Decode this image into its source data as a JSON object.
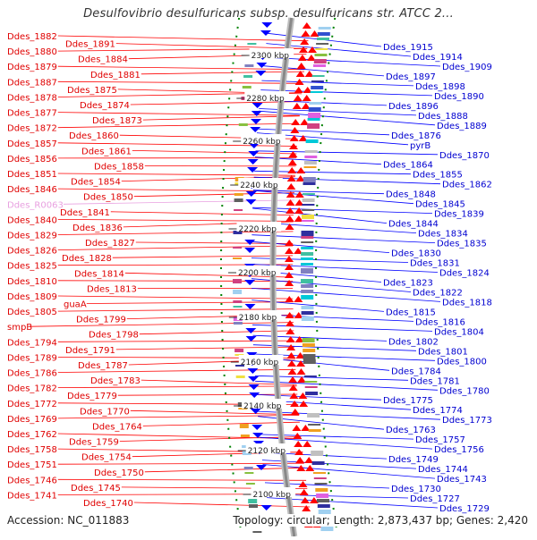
{
  "title": "Desulfovibrio desulfuricans subsp. desulfuricans str. ATCC 2...",
  "footer": {
    "accession": "Accession: NC_011883",
    "summary": "Topology: circular; Length: 2,873,437 bp; Genes: 2,420"
  },
  "colors": {
    "left_label": "#e00000",
    "left_label_alt": "#e8a0e0",
    "right_label": "#0000d0",
    "left_line": "#ff0000",
    "right_line": "#0000ff",
    "backbone": "#888888",
    "ticks": "#008000",
    "forward_gene": "#ff0000",
    "reverse_gene": "#0000ff"
  },
  "kbp_ticks": [
    "2300 kbp",
    "2280 kbp",
    "2260 kbp",
    "2240 kbp",
    "2220 kbp",
    "2200 kbp",
    "2180 kbp",
    "2160 kbp",
    "2140 kbp",
    "2120 kbp",
    "2100 kbp"
  ],
  "left_genes": [
    {
      "label": "Ddes_1882"
    },
    {
      "label": "Ddes_1891"
    },
    {
      "label": "Ddes_1880"
    },
    {
      "label": "Ddes_1884"
    },
    {
      "label": "Ddes_1879"
    },
    {
      "label": "Ddes_1881"
    },
    {
      "label": "Ddes_1887"
    },
    {
      "label": "Ddes_1875"
    },
    {
      "label": "Ddes_1878"
    },
    {
      "label": "Ddes_1874"
    },
    {
      "label": "Ddes_1877"
    },
    {
      "label": "Ddes_1873"
    },
    {
      "label": "Ddes_1872"
    },
    {
      "label": "Ddes_1860"
    },
    {
      "label": "Ddes_1857"
    },
    {
      "label": "Ddes_1861"
    },
    {
      "label": "Ddes_1856"
    },
    {
      "label": "Ddes_1858"
    },
    {
      "label": "Ddes_1851"
    },
    {
      "label": "Ddes_1854"
    },
    {
      "label": "Ddes_1846"
    },
    {
      "label": "Ddes_1850"
    },
    {
      "label": "Ddes_R0063",
      "alt": true
    },
    {
      "label": "Ddes_1841"
    },
    {
      "label": "Ddes_1840"
    },
    {
      "label": "Ddes_1836"
    },
    {
      "label": "Ddes_1829"
    },
    {
      "label": "Ddes_1827"
    },
    {
      "label": "Ddes_1826"
    },
    {
      "label": "Ddes_1828"
    },
    {
      "label": "Ddes_1825"
    },
    {
      "label": "Ddes_1814"
    },
    {
      "label": "Ddes_1810"
    },
    {
      "label": "Ddes_1813"
    },
    {
      "label": "Ddes_1809"
    },
    {
      "label": "guaA"
    },
    {
      "label": "Ddes_1805"
    },
    {
      "label": "Ddes_1799"
    },
    {
      "label": "smpB"
    },
    {
      "label": "Ddes_1798"
    },
    {
      "label": "Ddes_1794"
    },
    {
      "label": "Ddes_1791"
    },
    {
      "label": "Ddes_1789"
    },
    {
      "label": "Ddes_1787"
    },
    {
      "label": "Ddes_1786"
    },
    {
      "label": "Ddes_1783"
    },
    {
      "label": "Ddes_1782"
    },
    {
      "label": "Ddes_1779"
    },
    {
      "label": "Ddes_1772"
    },
    {
      "label": "Ddes_1770"
    },
    {
      "label": "Ddes_1769"
    },
    {
      "label": "Ddes_1764"
    },
    {
      "label": "Ddes_1762"
    },
    {
      "label": "Ddes_1759"
    },
    {
      "label": "Ddes_1758"
    },
    {
      "label": "Ddes_1754"
    },
    {
      "label": "Ddes_1751"
    },
    {
      "label": "Ddes_1750"
    },
    {
      "label": "Ddes_1746"
    },
    {
      "label": "Ddes_1745"
    },
    {
      "label": "Ddes_1741"
    },
    {
      "label": "Ddes_1740"
    }
  ],
  "right_genes": [
    {
      "label": "Ddes_1915"
    },
    {
      "label": "Ddes_1914"
    },
    {
      "label": "Ddes_1909"
    },
    {
      "label": "Ddes_1897"
    },
    {
      "label": "Ddes_1898"
    },
    {
      "label": "Ddes_1890"
    },
    {
      "label": "Ddes_1896"
    },
    {
      "label": "Ddes_1888"
    },
    {
      "label": "Ddes_1889"
    },
    {
      "label": "Ddes_1876"
    },
    {
      "label": "pyrB"
    },
    {
      "label": "Ddes_1870"
    },
    {
      "label": "Ddes_1864"
    },
    {
      "label": "Ddes_1855"
    },
    {
      "label": "Ddes_1862"
    },
    {
      "label": "Ddes_1848"
    },
    {
      "label": "Ddes_1845"
    },
    {
      "label": "Ddes_1839"
    },
    {
      "label": "Ddes_1844"
    },
    {
      "label": "Ddes_1834"
    },
    {
      "label": "Ddes_1835"
    },
    {
      "label": "Ddes_1830"
    },
    {
      "label": "Ddes_1831"
    },
    {
      "label": "Ddes_1824"
    },
    {
      "label": "Ddes_1823"
    },
    {
      "label": "Ddes_1822"
    },
    {
      "label": "Ddes_1818"
    },
    {
      "label": "Ddes_1815"
    },
    {
      "label": "Ddes_1816"
    },
    {
      "label": "Ddes_1804"
    },
    {
      "label": "Ddes_1802"
    },
    {
      "label": "Ddes_1801"
    },
    {
      "label": "Ddes_1800"
    },
    {
      "label": "Ddes_1784"
    },
    {
      "label": "Ddes_1781"
    },
    {
      "label": "Ddes_1780"
    },
    {
      "label": "Ddes_1775"
    },
    {
      "label": "Ddes_1774"
    },
    {
      "label": "Ddes_1773"
    },
    {
      "label": "Ddes_1763"
    },
    {
      "label": "Ddes_1757"
    },
    {
      "label": "Ddes_1756"
    },
    {
      "label": "Ddes_1749"
    },
    {
      "label": "Ddes_1744"
    },
    {
      "label": "Ddes_1743"
    },
    {
      "label": "Ddes_1730"
    },
    {
      "label": "Ddes_1727"
    },
    {
      "label": "Ddes_1729"
    }
  ]
}
